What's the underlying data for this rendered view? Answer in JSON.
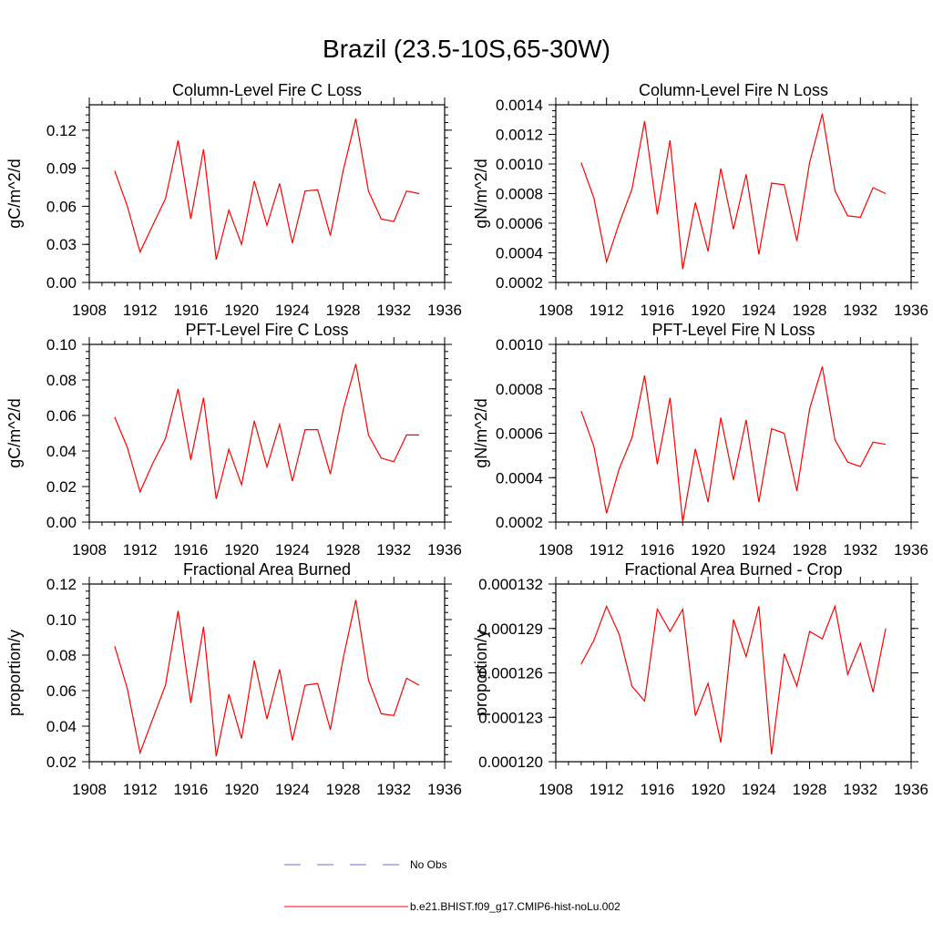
{
  "figure": {
    "title": "Brazil (23.5-10S,65-30W)"
  },
  "legend": {
    "entries": [
      {
        "label": "No Obs",
        "color": "#6b6bd6",
        "style": "dashed"
      },
      {
        "label": "b.e21.BHIST.f09_g17.CMIP6-hist-noLu.002",
        "color": "#ff0000",
        "style": "solid"
      }
    ]
  },
  "chart_data": [
    {
      "type": "line",
      "title": "Column-Level Fire C Loss",
      "ylabel": "gC/m^2/d",
      "xlim": [
        1908,
        1936
      ],
      "ylim": [
        0.0,
        0.14
      ],
      "xticks": [
        1908,
        1912,
        1916,
        1920,
        1924,
        1928,
        1932,
        1936
      ],
      "xtick_labels": [
        "1908",
        "1912",
        "1916",
        "1920",
        "1924",
        "1928",
        "1932",
        "1936"
      ],
      "yticks": [
        0.0,
        0.03,
        0.06,
        0.09,
        0.12
      ],
      "ytick_labels": [
        "0.00",
        "0.03",
        "0.06",
        "0.09",
        "0.12"
      ],
      "series": [
        {
          "name": "b.e21.BHIST.f09_g17.CMIP6-hist-noLu.002",
          "color": "#ff0000",
          "x": [
            1910,
            1911,
            1912,
            1913,
            1914,
            1915,
            1916,
            1917,
            1918,
            1919,
            1920,
            1921,
            1922,
            1923,
            1924,
            1925,
            1926,
            1927,
            1928,
            1929,
            1930,
            1931,
            1932,
            1933,
            1934
          ],
          "y": [
            0.088,
            0.06,
            0.024,
            0.045,
            0.066,
            0.112,
            0.05,
            0.105,
            0.018,
            0.057,
            0.03,
            0.08,
            0.045,
            0.078,
            0.031,
            0.072,
            0.073,
            0.037,
            0.088,
            0.129,
            0.072,
            0.05,
            0.048,
            0.072,
            0.07
          ]
        }
      ]
    },
    {
      "type": "line",
      "title": "Column-Level Fire N Loss",
      "ylabel": "gN/m^2/d",
      "xlim": [
        1908,
        1936
      ],
      "ylim": [
        0.0002,
        0.0014
      ],
      "xticks": [
        1908,
        1912,
        1916,
        1920,
        1924,
        1928,
        1932,
        1936
      ],
      "xtick_labels": [
        "1908",
        "1912",
        "1916",
        "1920",
        "1924",
        "1928",
        "1932",
        "1936"
      ],
      "yticks": [
        0.0002,
        0.0004,
        0.0006,
        0.0008,
        0.001,
        0.0012,
        0.0014
      ],
      "ytick_labels": [
        "0.0002",
        "0.0004",
        "0.0006",
        "0.0008",
        "0.0010",
        "0.0012",
        "0.0014"
      ],
      "series": [
        {
          "name": "b.e21.BHIST.f09_g17.CMIP6-hist-noLu.002",
          "color": "#ff0000",
          "x": [
            1910,
            1911,
            1912,
            1913,
            1914,
            1915,
            1916,
            1917,
            1918,
            1919,
            1920,
            1921,
            1922,
            1923,
            1924,
            1925,
            1926,
            1927,
            1928,
            1929,
            1930,
            1931,
            1932,
            1933,
            1934
          ],
          "y": [
            0.00101,
            0.00077,
            0.00034,
            0.0006,
            0.00083,
            0.00129,
            0.00066,
            0.00116,
            0.00029,
            0.00074,
            0.00041,
            0.00097,
            0.00056,
            0.00093,
            0.00039,
            0.00087,
            0.00086,
            0.00048,
            0.00101,
            0.00134,
            0.00082,
            0.00065,
            0.00064,
            0.00084,
            0.0008
          ]
        }
      ]
    },
    {
      "type": "line",
      "title": "PFT-Level Fire C Loss",
      "ylabel": "gC/m^2/d",
      "xlim": [
        1908,
        1936
      ],
      "ylim": [
        0.0,
        0.1
      ],
      "xticks": [
        1908,
        1912,
        1916,
        1920,
        1924,
        1928,
        1932,
        1936
      ],
      "xtick_labels": [
        "1908",
        "1912",
        "1916",
        "1920",
        "1924",
        "1928",
        "1932",
        "1936"
      ],
      "yticks": [
        0.0,
        0.02,
        0.04,
        0.06,
        0.08,
        0.1
      ],
      "ytick_labels": [
        "0.00",
        "0.02",
        "0.04",
        "0.06",
        "0.08",
        "0.10"
      ],
      "series": [
        {
          "name": "b.e21.BHIST.f09_g17.CMIP6-hist-noLu.002",
          "color": "#ff0000",
          "x": [
            1910,
            1911,
            1912,
            1913,
            1914,
            1915,
            1916,
            1917,
            1918,
            1919,
            1920,
            1921,
            1922,
            1923,
            1924,
            1925,
            1926,
            1927,
            1928,
            1929,
            1930,
            1931,
            1932,
            1933,
            1934
          ],
          "y": [
            0.059,
            0.042,
            0.017,
            0.033,
            0.047,
            0.075,
            0.035,
            0.07,
            0.013,
            0.041,
            0.021,
            0.057,
            0.031,
            0.055,
            0.023,
            0.052,
            0.052,
            0.027,
            0.063,
            0.089,
            0.049,
            0.036,
            0.034,
            0.049,
            0.049
          ]
        }
      ]
    },
    {
      "type": "line",
      "title": "PFT-Level Fire N Loss",
      "ylabel": "gN/m^2/d",
      "xlim": [
        1908,
        1936
      ],
      "ylim": [
        0.0002,
        0.001
      ],
      "xticks": [
        1908,
        1912,
        1916,
        1920,
        1924,
        1928,
        1932,
        1936
      ],
      "xtick_labels": [
        "1908",
        "1912",
        "1916",
        "1920",
        "1924",
        "1928",
        "1932",
        "1936"
      ],
      "yticks": [
        0.0002,
        0.0004,
        0.0006,
        0.0008,
        0.001
      ],
      "ytick_labels": [
        "0.0002",
        "0.0004",
        "0.0006",
        "0.0008",
        "0.0010"
      ],
      "series": [
        {
          "name": "b.e21.BHIST.f09_g17.CMIP6-hist-noLu.002",
          "color": "#ff0000",
          "x": [
            1910,
            1911,
            1912,
            1913,
            1914,
            1915,
            1916,
            1917,
            1918,
            1919,
            1920,
            1921,
            1922,
            1923,
            1924,
            1925,
            1926,
            1927,
            1928,
            1929,
            1930,
            1931,
            1932,
            1933,
            1934
          ],
          "y": [
            0.0007,
            0.00054,
            0.00024,
            0.00044,
            0.00058,
            0.00086,
            0.00046,
            0.00076,
            0.0002,
            0.00053,
            0.00029,
            0.00067,
            0.00039,
            0.00066,
            0.00029,
            0.00062,
            0.0006,
            0.00034,
            0.00071,
            0.0009,
            0.00057,
            0.00047,
            0.00045,
            0.00056,
            0.00055
          ]
        }
      ]
    },
    {
      "type": "line",
      "title": "Fractional Area Burned",
      "ylabel": "proportion/y",
      "xlim": [
        1908,
        1936
      ],
      "ylim": [
        0.02,
        0.12
      ],
      "xticks": [
        1908,
        1912,
        1916,
        1920,
        1924,
        1928,
        1932,
        1936
      ],
      "xtick_labels": [
        "1908",
        "1912",
        "1916",
        "1920",
        "1924",
        "1928",
        "1932",
        "1936"
      ],
      "yticks": [
        0.02,
        0.04,
        0.06,
        0.08,
        0.1,
        0.12
      ],
      "ytick_labels": [
        "0.02",
        "0.04",
        "0.06",
        "0.08",
        "0.10",
        "0.12"
      ],
      "series": [
        {
          "name": "b.e21.BHIST.f09_g17.CMIP6-hist-noLu.002",
          "color": "#ff0000",
          "x": [
            1910,
            1911,
            1912,
            1913,
            1914,
            1915,
            1916,
            1917,
            1918,
            1919,
            1920,
            1921,
            1922,
            1923,
            1924,
            1925,
            1926,
            1927,
            1928,
            1929,
            1930,
            1931,
            1932,
            1933,
            1934
          ],
          "y": [
            0.085,
            0.061,
            0.025,
            0.044,
            0.063,
            0.105,
            0.053,
            0.096,
            0.023,
            0.058,
            0.033,
            0.077,
            0.044,
            0.072,
            0.032,
            0.063,
            0.064,
            0.038,
            0.078,
            0.111,
            0.066,
            0.047,
            0.046,
            0.067,
            0.063
          ]
        }
      ]
    },
    {
      "type": "line",
      "title": "Fractional Area Burned - Crop",
      "ylabel": "proportion/y",
      "xlim": [
        1908,
        1936
      ],
      "ylim": [
        0.00012,
        0.000132
      ],
      "xticks": [
        1908,
        1912,
        1916,
        1920,
        1924,
        1928,
        1932,
        1936
      ],
      "xtick_labels": [
        "1908",
        "1912",
        "1916",
        "1920",
        "1924",
        "1928",
        "1932",
        "1936"
      ],
      "yticks": [
        0.00012,
        0.000123,
        0.000126,
        0.000129,
        0.000132
      ],
      "ytick_labels": [
        "0.000120",
        "0.000123",
        "0.000126",
        "0.000129",
        "0.000132"
      ],
      "series": [
        {
          "name": "b.e21.BHIST.f09_g17.CMIP6-hist-noLu.002",
          "color": "#ff0000",
          "x": [
            1910,
            1911,
            1912,
            1913,
            1914,
            1915,
            1916,
            1917,
            1918,
            1919,
            1920,
            1921,
            1922,
            1923,
            1924,
            1925,
            1926,
            1927,
            1928,
            1929,
            1930,
            1931,
            1932,
            1933,
            1934
          ],
          "y": [
            0.0001266,
            0.0001282,
            0.0001305,
            0.0001286,
            0.0001251,
            0.0001241,
            0.0001303,
            0.0001288,
            0.0001303,
            0.0001231,
            0.0001253,
            0.0001213,
            0.0001296,
            0.0001271,
            0.0001305,
            0.0001205,
            0.0001273,
            0.0001251,
            0.0001288,
            0.0001283,
            0.0001305,
            0.0001259,
            0.000128,
            0.0001247,
            0.000129
          ]
        }
      ]
    }
  ]
}
